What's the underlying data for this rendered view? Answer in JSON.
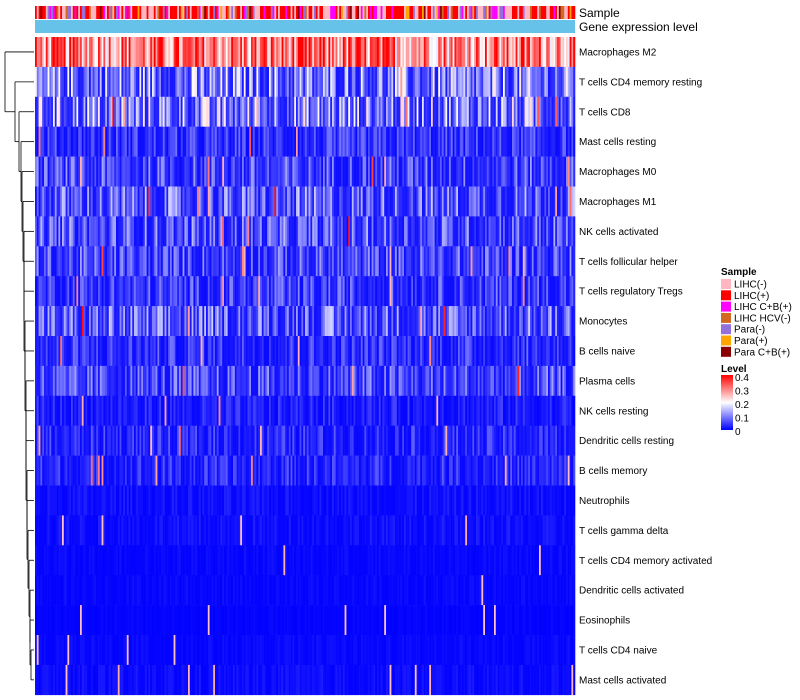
{
  "chart_data": {
    "type": "heatmap",
    "annotations": [
      {
        "name": "Sample",
        "type": "categorical"
      },
      {
        "name": "Gene expression level",
        "type": "continuous",
        "color": "#66c2e8"
      }
    ],
    "rows": [
      {
        "label": "Macrophages M2",
        "mean": 0.3
      },
      {
        "label": "T cells CD4 memory resting",
        "mean": 0.12
      },
      {
        "label": "T cells CD8",
        "mean": 0.13
      },
      {
        "label": "Mast cells resting",
        "mean": 0.05
      },
      {
        "label": "Macrophages M0",
        "mean": 0.07
      },
      {
        "label": "Macrophages M1",
        "mean": 0.09
      },
      {
        "label": "NK cells activated",
        "mean": 0.08
      },
      {
        "label": "T cells follicular helper",
        "mean": 0.07
      },
      {
        "label": "T cells regulatory  Tregs",
        "mean": 0.06
      },
      {
        "label": "Monocytes",
        "mean": 0.09
      },
      {
        "label": "B cells naive",
        "mean": 0.05
      },
      {
        "label": "Plasma cells",
        "mean": 0.07
      },
      {
        "label": "NK cells resting",
        "mean": 0.03
      },
      {
        "label": "Dendritic cells resting",
        "mean": 0.04
      },
      {
        "label": "B cells memory",
        "mean": 0.04
      },
      {
        "label": "Neutrophils",
        "mean": 0.015
      },
      {
        "label": "T cells gamma delta",
        "mean": 0.015
      },
      {
        "label": "T cells CD4 memory activated",
        "mean": 0.008
      },
      {
        "label": "Dendritic cells activated",
        "mean": 0.008
      },
      {
        "label": "Eosinophils",
        "mean": 0.004
      },
      {
        "label": "T cells CD4 naive",
        "mean": 0.008
      },
      {
        "label": "Mast cells activated",
        "mean": 0.012
      }
    ],
    "sample_legend": {
      "title": "Sample",
      "items": [
        {
          "label": "LIHC(-)",
          "color": "#ffb6c1"
        },
        {
          "label": "LIHC(+)",
          "color": "#ff0000"
        },
        {
          "label": "LIHC C+B(+)",
          "color": "#ff00ff"
        },
        {
          "label": "LIHC HCV(-)",
          "color": "#d2691e"
        },
        {
          "label": "Para(-)",
          "color": "#9370db"
        },
        {
          "label": "Para(+)",
          "color": "#ffa500"
        },
        {
          "label": "Para C+B(+)",
          "color": "#8b0000"
        }
      ]
    },
    "level_legend": {
      "title": "Level",
      "ticks": [
        "0.4",
        "0.3",
        "0.2",
        "0.1",
        "0"
      ],
      "range": [
        0,
        0.4
      ],
      "colors": [
        "#0000ff",
        "#ffffff",
        "#ff0000"
      ]
    },
    "n_columns": 300
  }
}
